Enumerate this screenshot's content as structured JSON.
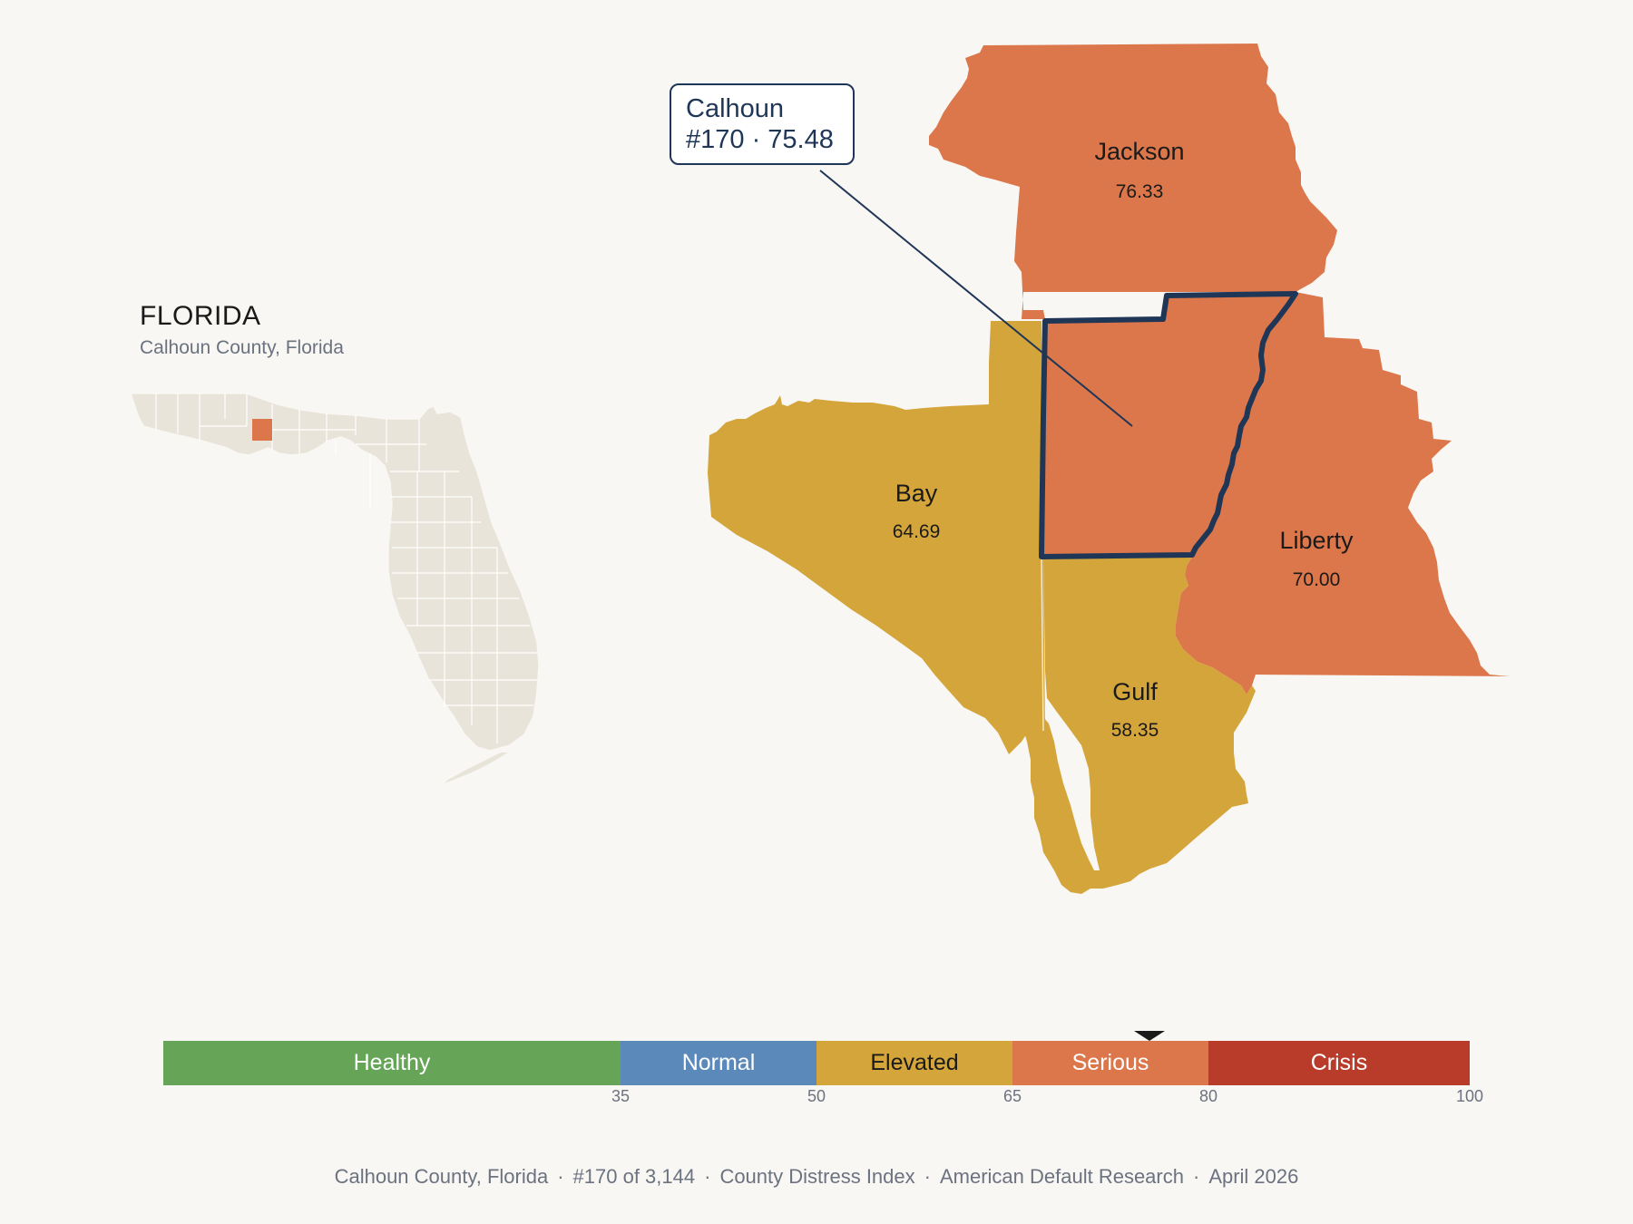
{
  "state": {
    "title": "FLORIDA",
    "subtitle": "Calhoun County, Florida"
  },
  "callout": {
    "name": "Calhoun",
    "rank_score": "#170 · 75.48"
  },
  "counties": [
    {
      "id": "jackson",
      "name": "Jackson",
      "score": "76.33",
      "category": "Serious"
    },
    {
      "id": "bay",
      "name": "Bay",
      "score": "64.69",
      "category": "Elevated"
    },
    {
      "id": "liberty",
      "name": "Liberty",
      "score": "70.00",
      "category": "Serious"
    },
    {
      "id": "gulf",
      "name": "Gulf",
      "score": "58.35",
      "category": "Elevated"
    },
    {
      "id": "calhoun",
      "name": "Calhoun",
      "score": "75.48",
      "category": "Serious",
      "highlighted": true
    }
  ],
  "scale": {
    "min": 0,
    "max": 100,
    "marker_value": 75.48,
    "segments": [
      {
        "label": "Healthy",
        "from": 0,
        "to": 35,
        "color": "#66a558",
        "text_color": "#ffffff"
      },
      {
        "label": "Normal",
        "from": 35,
        "to": 50,
        "color": "#5b8aba",
        "text_color": "#ffffff"
      },
      {
        "label": "Elevated",
        "from": 50,
        "to": 65,
        "color": "#d4a53a",
        "text_color": "#1a1a1a"
      },
      {
        "label": "Serious",
        "from": 65,
        "to": 80,
        "color": "#dc774b",
        "text_color": "#ffffff"
      },
      {
        "label": "Crisis",
        "from": 80,
        "to": 100,
        "color": "#b93b2a",
        "text_color": "#ffffff"
      }
    ],
    "ticks": [
      "35",
      "50",
      "65",
      "80",
      "100"
    ]
  },
  "footer": {
    "county": "Calhoun County, Florida",
    "rank": "#170 of 3,144",
    "index": "County Distress Index",
    "source": "American Default Research",
    "date": "April 2026"
  },
  "colors": {
    "serious": "#dc774b",
    "elevated": "#d4a53a",
    "outline": "#1f3656",
    "inset_land": "#e9e4d9"
  }
}
